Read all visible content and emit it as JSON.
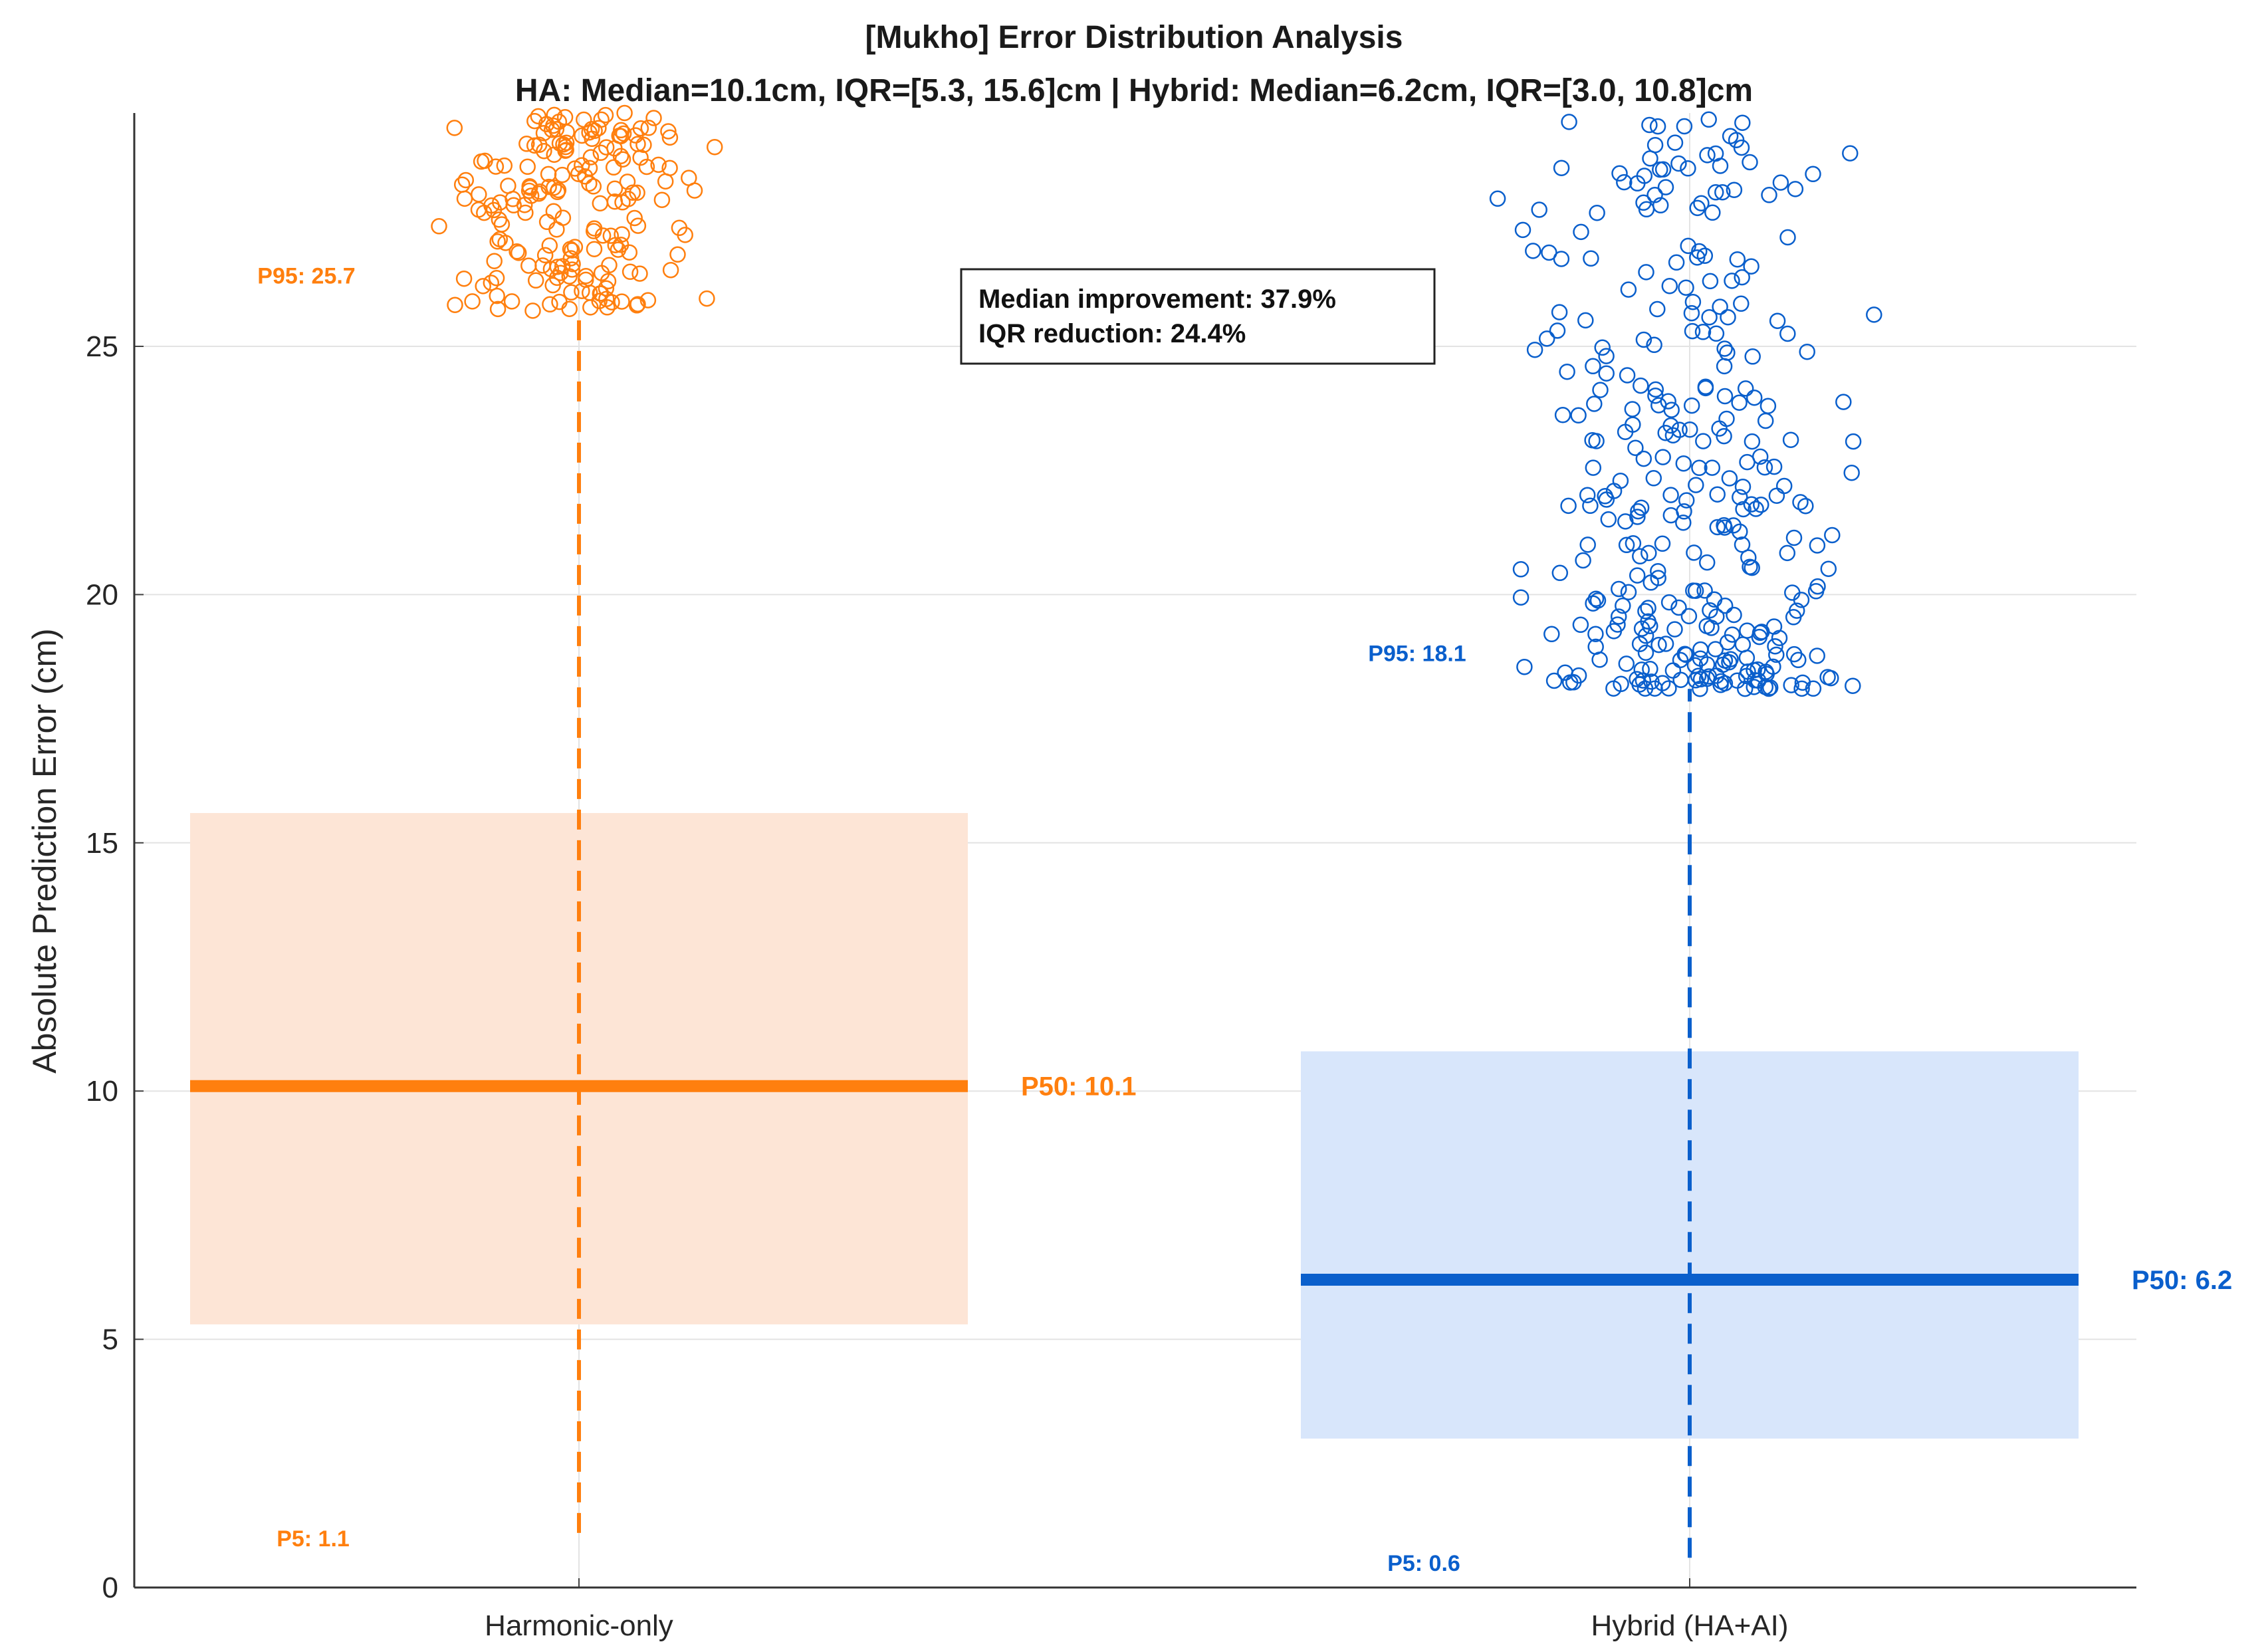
{
  "chart_data": {
    "type": "scatter",
    "title": "[Mukho] Error Distribution Analysis",
    "subtitle": "HA: Median=10.1cm, IQR=[5.3, 15.6]cm | Hybrid: Median=6.2cm, IQR=[3.0, 10.8]cm",
    "xlabel": "",
    "ylabel": "Absolute Prediction Error (cm)",
    "categories": [
      "Harmonic-only",
      "Hybrid (HA+AI)"
    ],
    "ylim": [
      0,
      29.7
    ],
    "yticks": [
      0,
      5,
      10,
      15,
      20,
      25
    ],
    "grid": true,
    "series": [
      {
        "name": "Harmonic-only",
        "color": "#ff7f0e",
        "fill_color": "#fde5d6",
        "p5": 1.1,
        "q1": 5.3,
        "median": 10.1,
        "q3": 15.6,
        "p95": 25.7,
        "p5_label": "P5: 1.1",
        "p50_label": "P50: 10.1",
        "p95_label": "P95: 25.7",
        "outlier_count": 190,
        "outlier_range": [
          25.7,
          29.7
        ]
      },
      {
        "name": "Hybrid (HA+AI)",
        "color": "#0a5fcc",
        "fill_color": "#d8e6fb",
        "p5": 0.6,
        "q1": 3.0,
        "median": 6.2,
        "q3": 10.8,
        "p95": 18.1,
        "p5_label": "P5: 0.6",
        "p50_label": "P50: 6.2",
        "p95_label": "P95: 18.1",
        "outlier_count": 330,
        "outlier_range": [
          18.1,
          29.7
        ]
      }
    ],
    "annotations": [
      "Median improvement: 37.9%",
      "IQR reduction: 24.4%"
    ]
  }
}
